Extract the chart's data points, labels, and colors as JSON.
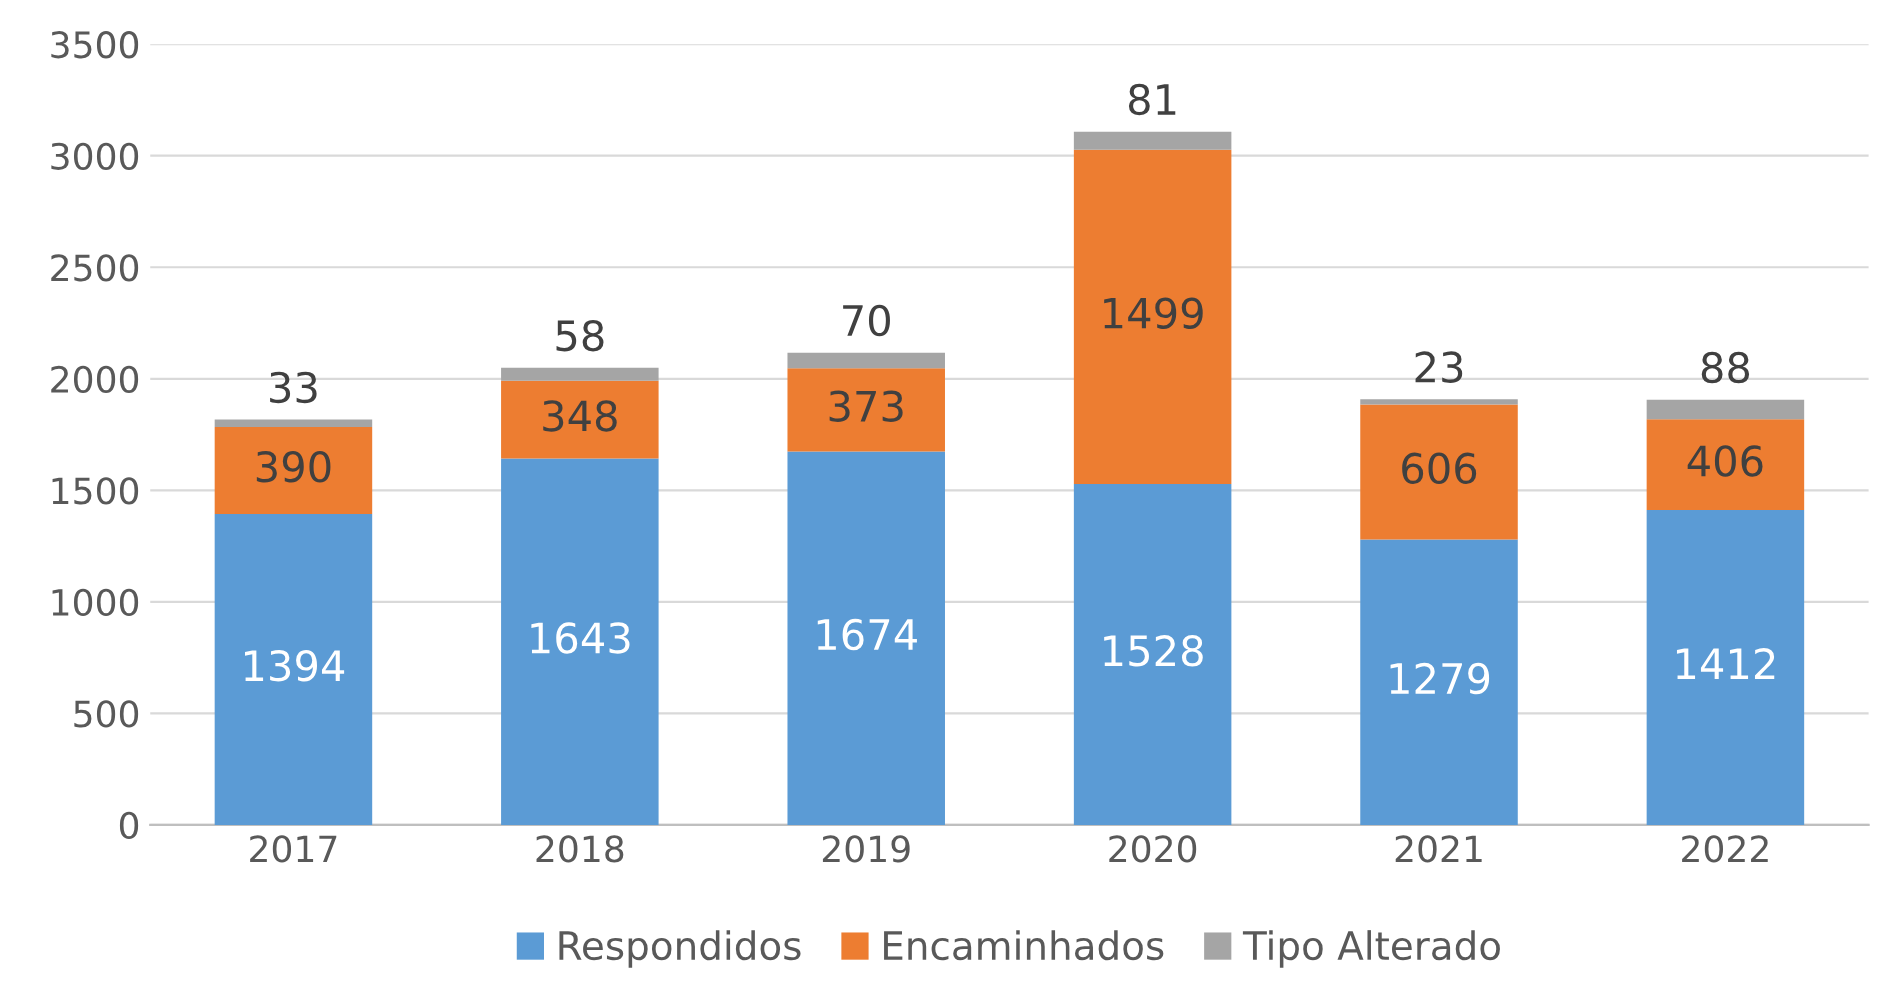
{
  "chart_data": {
    "type": "bar",
    "stacked": true,
    "categories": [
      "2017",
      "2018",
      "2019",
      "2020",
      "2021",
      "2022"
    ],
    "series": [
      {
        "name": "Respondidos",
        "color": "#5b9bd5",
        "values": [
          1394,
          1643,
          1674,
          1528,
          1279,
          1412
        ]
      },
      {
        "name": "Encaminhados",
        "color": "#ed7d31",
        "values": [
          390,
          348,
          373,
          1499,
          606,
          406
        ]
      },
      {
        "name": "Tipo Alterado",
        "color": "#a5a5a5",
        "values": [
          33,
          58,
          70,
          81,
          23,
          88
        ]
      }
    ],
    "ylim": [
      0,
      3500
    ],
    "yticks": [
      0,
      500,
      1000,
      1500,
      2000,
      2500,
      3000,
      3500
    ],
    "grid": "y",
    "legend": "bottom",
    "data_labels": true
  }
}
